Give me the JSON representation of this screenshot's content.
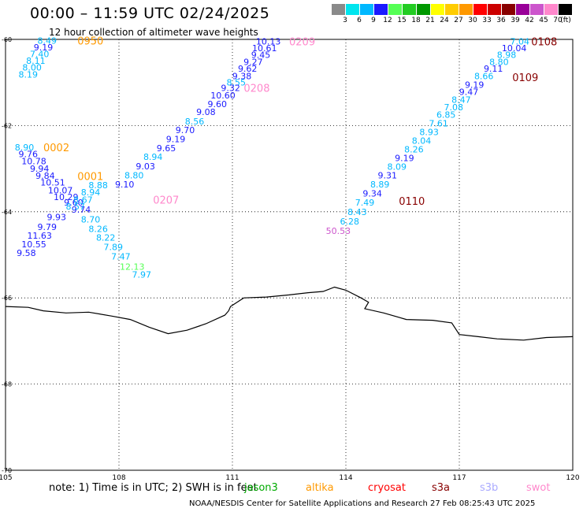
{
  "title": "00:00 – 11:59 UTC 02/24/2025",
  "subtitle": "12 hour collection of altimeter wave heights",
  "scale": {
    "colors": [
      "#8a8a8a",
      "#00e5ee",
      "#00b8ff",
      "#1a1aff",
      "#55ff55",
      "#22cc22",
      "#009900",
      "#ffff00",
      "#ffcc00",
      "#ff9900",
      "#ff0000",
      "#cc0000",
      "#880000",
      "#990099",
      "#cc55cc",
      "#ff88cc",
      "#000000"
    ],
    "labels": [
      "3",
      "6",
      "9",
      "12",
      "15",
      "18",
      "21",
      "24",
      "27",
      "30",
      "33",
      "36",
      "39",
      "42",
      "45",
      "70",
      "(ft)"
    ]
  },
  "map": {
    "lat_labels": [
      "-60",
      "-62",
      "-64",
      "-66",
      "-68",
      "-70"
    ],
    "lon_labels": [
      "105",
      "108",
      "111",
      "114",
      "117",
      "120"
    ],
    "lat_lines": [
      -62,
      -64,
      -66,
      -68
    ],
    "lon_lines": [
      108,
      111,
      114,
      117
    ],
    "coastline": [
      [
        105,
        -66.2
      ],
      [
        105.6,
        -66.22
      ],
      [
        106.0,
        -66.3
      ],
      [
        106.6,
        -66.35
      ],
      [
        107.2,
        -66.33
      ],
      [
        107.8,
        -66.42
      ],
      [
        108.3,
        -66.5
      ],
      [
        108.8,
        -66.68
      ],
      [
        109.3,
        -66.83
      ],
      [
        109.8,
        -66.75
      ],
      [
        110.3,
        -66.6
      ],
      [
        110.8,
        -66.4
      ],
      [
        110.9,
        -66.3
      ],
      [
        110.95,
        -66.2
      ],
      [
        111.3,
        -66.0
      ],
      [
        111.9,
        -65.98
      ],
      [
        112.5,
        -65.93
      ],
      [
        113.0,
        -65.88
      ],
      [
        113.4,
        -65.85
      ],
      [
        113.7,
        -65.75
      ],
      [
        114.0,
        -65.82
      ],
      [
        114.4,
        -66.0
      ],
      [
        114.6,
        -66.1
      ],
      [
        114.5,
        -66.25
      ],
      [
        115.0,
        -66.35
      ],
      [
        115.6,
        -66.5
      ],
      [
        116.3,
        -66.52
      ],
      [
        116.8,
        -66.58
      ],
      [
        117.0,
        -66.85
      ],
      [
        117.5,
        -66.9
      ],
      [
        118.0,
        -66.95
      ],
      [
        118.7,
        -66.98
      ],
      [
        119.3,
        -66.92
      ],
      [
        120.0,
        -66.9
      ]
    ],
    "tracks": [
      {
        "label": "0950",
        "label_color": "#ff9900",
        "label_pos": [
          106.9,
          -60.03
        ],
        "points": [
          {
            "lon": 106.1,
            "lat": -60.03,
            "value": "8.49",
            "color": "#00b8ff"
          },
          {
            "lon": 106.0,
            "lat": -60.18,
            "value": "9.19",
            "color": "#1a1aff"
          },
          {
            "lon": 105.9,
            "lat": -60.34,
            "value": "7.40",
            "color": "#00b8ff"
          },
          {
            "lon": 105.8,
            "lat": -60.49,
            "value": "8.11",
            "color": "#00b8ff"
          },
          {
            "lon": 105.7,
            "lat": -60.65,
            "value": "8.00",
            "color": "#00b8ff"
          },
          {
            "lon": 105.6,
            "lat": -60.81,
            "value": "8.19",
            "color": "#00b8ff"
          }
        ]
      },
      {
        "label": "0209",
        "label_color": "#ff88cc",
        "label_pos": [
          112.5,
          -60.05
        ],
        "points": [
          {
            "lon": 111.95,
            "lat": -60.05,
            "value": "10.13",
            "color": "#1a1aff"
          },
          {
            "lon": 111.85,
            "lat": -60.2,
            "value": "10.61",
            "color": "#1a1aff"
          },
          {
            "lon": 111.75,
            "lat": -60.36,
            "value": "9.45",
            "color": "#1a1aff"
          },
          {
            "lon": 111.55,
            "lat": -60.52,
            "value": "9.27",
            "color": "#1a1aff"
          },
          {
            "lon": 111.4,
            "lat": -60.68,
            "value": "9.62",
            "color": "#1a1aff"
          },
          {
            "lon": 111.25,
            "lat": -60.85,
            "value": "9.38",
            "color": "#1a1aff"
          },
          {
            "lon": 111.1,
            "lat": -61.0,
            "value": "8.55",
            "color": "#00b8ff"
          },
          {
            "lon": 110.95,
            "lat": -61.12,
            "value": "9.32",
            "color": "#1a1aff"
          },
          {
            "lon": 110.75,
            "lat": -61.3,
            "value": "10.60",
            "color": "#1a1aff"
          },
          {
            "lon": 110.6,
            "lat": -61.5,
            "value": "9.60",
            "color": "#1a1aff"
          },
          {
            "lon": 110.3,
            "lat": -61.68,
            "value": "9.08",
            "color": "#1a1aff"
          },
          {
            "lon": 110.0,
            "lat": -61.9,
            "value": "8.56",
            "color": "#00b8ff"
          },
          {
            "lon": 109.75,
            "lat": -62.1,
            "value": "9.70",
            "color": "#1a1aff"
          },
          {
            "lon": 109.5,
            "lat": -62.31,
            "value": "9.19",
            "color": "#1a1aff"
          },
          {
            "lon": 109.25,
            "lat": -62.52,
            "value": "9.65",
            "color": "#1a1aff"
          },
          {
            "lon": 108.9,
            "lat": -62.72,
            "value": "8.94",
            "color": "#00b8ff"
          },
          {
            "lon": 108.7,
            "lat": -62.94,
            "value": "9.03",
            "color": "#1a1aff"
          },
          {
            "lon": 108.4,
            "lat": -63.15,
            "value": "8.80",
            "color": "#00b8ff"
          },
          {
            "lon": 108.15,
            "lat": -63.36,
            "value": "9.10",
            "color": "#1a1aff"
          }
        ]
      },
      {
        "label": "0208",
        "label_color": "#ff88cc",
        "label_pos": [
          111.3,
          -61.12
        ],
        "points": []
      },
      {
        "label": "0002",
        "label_color": "#ff9900",
        "label_pos": [
          106.0,
          -62.5
        ],
        "points": [
          {
            "lon": 105.5,
            "lat": -62.5,
            "value": "8.90",
            "color": "#00b8ff"
          },
          {
            "lon": 105.6,
            "lat": -62.66,
            "value": "9.76",
            "color": "#1a1aff"
          },
          {
            "lon": 105.75,
            "lat": -62.82,
            "value": "10.78",
            "color": "#1a1aff"
          },
          {
            "lon": 105.9,
            "lat": -63.0,
            "value": "9.94",
            "color": "#1a1aff"
          },
          {
            "lon": 106.05,
            "lat": -63.16,
            "value": "9.84",
            "color": "#1a1aff"
          },
          {
            "lon": 106.25,
            "lat": -63.32,
            "value": "10.51",
            "color": "#1a1aff"
          },
          {
            "lon": 106.45,
            "lat": -63.5,
            "value": "10.07",
            "color": "#1a1aff"
          },
          {
            "lon": 106.6,
            "lat": -63.66,
            "value": "10.29",
            "color": "#1a1aff"
          },
          {
            "lon": 106.8,
            "lat": -63.78,
            "value": "9.60",
            "color": "#1a1aff"
          },
          {
            "lon": 107.0,
            "lat": -63.95,
            "value": "9.74",
            "color": "#1a1aff"
          },
          {
            "lon": 107.25,
            "lat": -64.18,
            "value": "8.70",
            "color": "#00b8ff"
          },
          {
            "lon": 107.45,
            "lat": -64.4,
            "value": "8.26",
            "color": "#00b8ff"
          },
          {
            "lon": 107.65,
            "lat": -64.6,
            "value": "8.22",
            "color": "#00b8ff"
          },
          {
            "lon": 107.85,
            "lat": -64.82,
            "value": "7.89",
            "color": "#00b8ff"
          },
          {
            "lon": 108.05,
            "lat": -65.04,
            "value": "7.47",
            "color": "#00b8ff"
          },
          {
            "lon": 108.35,
            "lat": -65.27,
            "value": "12.13",
            "color": "#55ff55"
          },
          {
            "lon": 108.6,
            "lat": -65.46,
            "value": "7.97",
            "color": "#00b8ff"
          }
        ]
      },
      {
        "label": "0001",
        "label_color": "#ff9900",
        "label_pos": [
          106.9,
          -63.17
        ],
        "points": [
          {
            "lon": 107.45,
            "lat": -63.38,
            "value": "8.88",
            "color": "#00b8ff"
          },
          {
            "lon": 107.25,
            "lat": -63.55,
            "value": "8.94",
            "color": "#00b8ff"
          },
          {
            "lon": 107.05,
            "lat": -63.72,
            "value": "8.67",
            "color": "#00b8ff"
          },
          {
            "lon": 106.85,
            "lat": -63.88,
            "value": "8.57",
            "color": "#00b8ff"
          },
          {
            "lon": 106.35,
            "lat": -64.12,
            "value": "9.93",
            "color": "#1a1aff"
          },
          {
            "lon": 106.1,
            "lat": -64.35,
            "value": "9.79",
            "color": "#1a1aff"
          },
          {
            "lon": 105.9,
            "lat": -64.55,
            "value": "11.63",
            "color": "#1a1aff"
          },
          {
            "lon": 105.75,
            "lat": -64.75,
            "value": "10.55",
            "color": "#1a1aff"
          },
          {
            "lon": 105.55,
            "lat": -64.95,
            "value": "9.58",
            "color": "#1a1aff"
          }
        ]
      },
      {
        "label": "0207",
        "label_color": "#ff88cc",
        "label_pos": [
          108.9,
          -63.72
        ],
        "points": []
      },
      {
        "label": "0108",
        "label_color": "#880000",
        "label_pos": [
          118.9,
          -60.05
        ],
        "points": [
          {
            "lon": 118.6,
            "lat": -60.05,
            "value": "7.04",
            "color": "#00b8ff"
          },
          {
            "lon": 118.45,
            "lat": -60.2,
            "value": "10.04",
            "color": "#1a1aff"
          },
          {
            "lon": 118.25,
            "lat": -60.36,
            "value": "8.98",
            "color": "#00b8ff"
          },
          {
            "lon": 118.05,
            "lat": -60.52,
            "value": "8.80",
            "color": "#00b8ff"
          },
          {
            "lon": 117.9,
            "lat": -60.68,
            "value": "9.11",
            "color": "#1a1aff"
          },
          {
            "lon": 117.65,
            "lat": -60.85,
            "value": "8.66",
            "color": "#00b8ff"
          },
          {
            "lon": 117.4,
            "lat": -61.05,
            "value": "9.19",
            "color": "#1a1aff"
          },
          {
            "lon": 117.25,
            "lat": -61.22,
            "value": "9.47",
            "color": "#1a1aff"
          },
          {
            "lon": 117.05,
            "lat": -61.4,
            "value": "8.47",
            "color": "#00b8ff"
          },
          {
            "lon": 116.85,
            "lat": -61.57,
            "value": "7.08",
            "color": "#00b8ff"
          },
          {
            "lon": 116.65,
            "lat": -61.75,
            "value": "6.85",
            "color": "#00b8ff"
          },
          {
            "lon": 116.45,
            "lat": -61.95,
            "value": "7.61",
            "color": "#00b8ff"
          },
          {
            "lon": 116.2,
            "lat": -62.15,
            "value": "8.93",
            "color": "#00b8ff"
          },
          {
            "lon": 116.0,
            "lat": -62.35,
            "value": "8.04",
            "color": "#00b8ff"
          },
          {
            "lon": 115.8,
            "lat": -62.55,
            "value": "8.26",
            "color": "#00b8ff"
          },
          {
            "lon": 115.55,
            "lat": -62.75,
            "value": "9.19",
            "color": "#1a1aff"
          },
          {
            "lon": 115.35,
            "lat": -62.95,
            "value": "8.09",
            "color": "#00b8ff"
          },
          {
            "lon": 115.1,
            "lat": -63.15,
            "value": "9.31",
            "color": "#1a1aff"
          },
          {
            "lon": 114.9,
            "lat": -63.36,
            "value": "8.89",
            "color": "#00b8ff"
          },
          {
            "lon": 114.7,
            "lat": -63.57,
            "value": "9.34",
            "color": "#1a1aff"
          },
          {
            "lon": 114.5,
            "lat": -63.78,
            "value": "7.49",
            "color": "#00b8ff"
          },
          {
            "lon": 114.3,
            "lat": -64.0,
            "value": "8.43",
            "color": "#00b8ff"
          },
          {
            "lon": 114.1,
            "lat": -64.22,
            "value": "6.28",
            "color": "#00b8ff"
          },
          {
            "lon": 113.8,
            "lat": -64.44,
            "value": "50.53",
            "color": "#cc55cc"
          }
        ]
      },
      {
        "label": "0109",
        "label_color": "#880000",
        "label_pos": [
          118.4,
          -60.88
        ],
        "points": []
      },
      {
        "label": "0110",
        "label_color": "#880000",
        "label_pos": [
          115.4,
          -63.75
        ],
        "points": []
      }
    ]
  },
  "note": "note: 1) Time is in UTC; 2) SWH is in feet",
  "satellites": [
    {
      "name": "jason3",
      "color": "#00aa00"
    },
    {
      "name": "altika",
      "color": "#ff9900"
    },
    {
      "name": "cryosat",
      "color": "#ff0000"
    },
    {
      "name": "s3a",
      "color": "#880000"
    },
    {
      "name": "s3b",
      "color": "#aaaaff"
    },
    {
      "name": "swot",
      "color": "#ff88cc"
    }
  ],
  "credit": "NOAA/NESDIS Center for Satellite Applications and Research   27 Feb 08:25:43 UTC 2025"
}
